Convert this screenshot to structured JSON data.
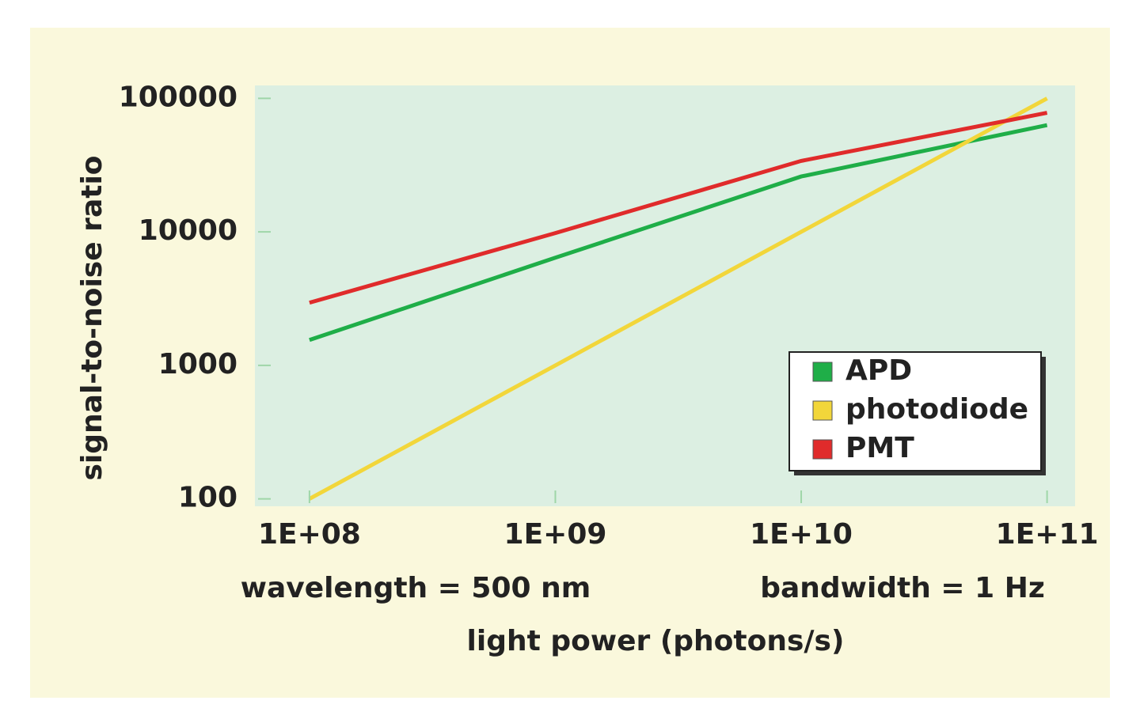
{
  "chart_data": {
    "type": "line",
    "x_label": "light power (photons/s)",
    "y_label": "signal-to-noise ratio",
    "annotations": [
      "wavelength = 500 nm",
      "bandwidth = 1 Hz"
    ],
    "x": [
      100000000,
      1000000000,
      10000000000,
      100000000000
    ],
    "series": [
      {
        "name": "APD",
        "color": "#1fae48",
        "values": [
          1550,
          6400,
          26000,
          63000
        ]
      },
      {
        "name": "photodiode",
        "color": "#f2d63a",
        "values": [
          100,
          1000,
          10000,
          100000
        ]
      },
      {
        "name": "PMT",
        "color": "#e02b2b",
        "values": [
          2950,
          9800,
          34000,
          78000
        ]
      }
    ],
    "x_log": true,
    "y_log": true,
    "xlim": [
      60000000,
      130000000000
    ],
    "ylim": [
      88,
      125000
    ],
    "xticks": [
      {
        "value": 100000000,
        "label": "1E+08"
      },
      {
        "value": 1000000000,
        "label": "1E+09"
      },
      {
        "value": 10000000000,
        "label": "1E+10"
      },
      {
        "value": 100000000000,
        "label": "1E+11"
      }
    ],
    "yticks": [
      100,
      1000,
      10000,
      100000
    ],
    "legend": "lower right"
  }
}
